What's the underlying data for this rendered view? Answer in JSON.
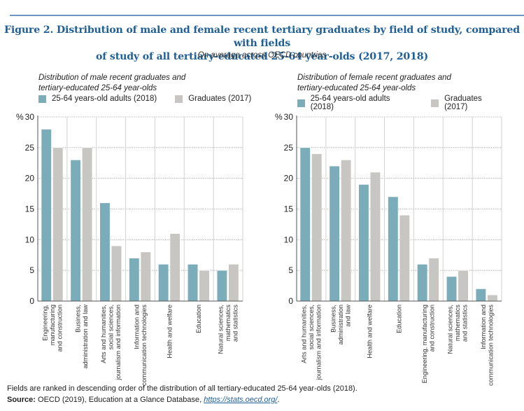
{
  "figure": {
    "title_line1": "Figure 2. Distribution of male and female recent tertiary graduates by field of study, compared with fields",
    "title_line2": "of study of all tertiary-educated 25-64 year-olds (2017, 2018)",
    "subtitle": "On average across OECD countries",
    "footnote": "Fields are ranked in descending order of the distribution of all tertiary-educated 25-64 year-olds (2018).",
    "source_label": "Source:",
    "source_text": " OECD (2019), Education at a Glance Database, ",
    "source_link": "https://stats.oecd.org/",
    "source_end": "."
  },
  "colors": {
    "adults_2018": "#7aadb9",
    "graduates_2017": "#c8c6c2",
    "title": "#1f5f96"
  },
  "chart_data": [
    {
      "type": "bar",
      "title_line1": "Distribution of male recent graduates and",
      "title_line2": "tertiary-educated 25-64 year-olds",
      "ylabel": "%",
      "ylim": [
        0,
        30
      ],
      "yticks": [
        0,
        5,
        10,
        15,
        20,
        25,
        30
      ],
      "grid": true,
      "legend": "top-left",
      "categories": [
        [
          "Engineering,",
          "manufacturing",
          "and construction"
        ],
        [
          "Business,",
          "administration and law"
        ],
        [
          "Arts and humanities,",
          "social sciences,",
          "journalism and information"
        ],
        [
          "Information and",
          "communication technologies"
        ],
        [
          "Health and welfare"
        ],
        [
          "Education"
        ],
        [
          "Natural sciences,",
          "mathematics",
          "and statistics"
        ]
      ],
      "series": [
        {
          "name": "25-64 years-old adults (2018)",
          "values": [
            28,
            23,
            16,
            7,
            6,
            6,
            5
          ]
        },
        {
          "name": "Graduates (2017)",
          "values": [
            25,
            25,
            9,
            8,
            11,
            5,
            6
          ]
        }
      ]
    },
    {
      "type": "bar",
      "title_line1": "Distribution of female recent graduates and",
      "title_line2": "tertiary-educated 25-64 year-olds",
      "ylabel": "%",
      "ylim": [
        0,
        30
      ],
      "yticks": [
        0,
        5,
        10,
        15,
        20,
        25,
        30
      ],
      "grid": true,
      "legend": "top-left",
      "categories": [
        [
          "Arts and humanities,",
          "social sciences,",
          "journalism and information"
        ],
        [
          "Business,",
          "administration",
          "and law"
        ],
        [
          "Health and welfare"
        ],
        [
          "Education"
        ],
        [
          "Engineering, manufacturing",
          "and construction"
        ],
        [
          "Natural sciences,",
          "mathematics",
          "and statistics"
        ],
        [
          "Information and",
          "communication technologies"
        ]
      ],
      "series": [
        {
          "name": "25-64 years-old adults (2018)",
          "values": [
            25,
            22,
            19,
            17,
            6,
            4,
            2
          ]
        },
        {
          "name": "Graduates (2017)",
          "values": [
            24,
            23,
            21,
            14,
            7,
            5,
            1
          ]
        }
      ]
    }
  ]
}
